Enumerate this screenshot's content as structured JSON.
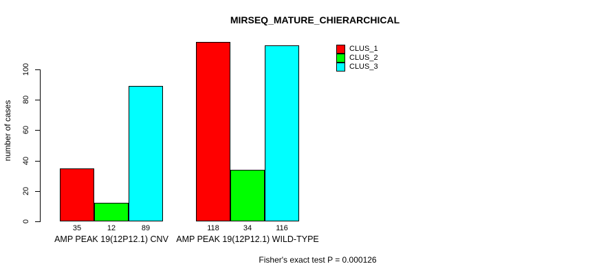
{
  "chart_data": {
    "type": "bar",
    "grouped": true,
    "title": "MIRSEQ_MATURE_CHIERARCHICAL",
    "ylabel": "number of cases",
    "xlabel": "",
    "categories": [
      "AMP PEAK 19(12P12.1) CNV",
      "AMP PEAK 19(12P12.1) WILD-TYPE"
    ],
    "series": [
      {
        "name": "CLUS_1",
        "color": "#ff0000",
        "values": [
          35,
          118
        ]
      },
      {
        "name": "CLUS_2",
        "color": "#00ff00",
        "values": [
          12,
          34
        ]
      },
      {
        "name": "CLUS_3",
        "color": "#00ffff",
        "values": [
          89,
          116
        ]
      }
    ],
    "bar_value_labels": [
      [
        35,
        12,
        89
      ],
      [
        118,
        34,
        116
      ]
    ],
    "yticks": [
      0,
      20,
      40,
      60,
      80,
      100
    ],
    "ylim": [
      0,
      120
    ],
    "grid": false,
    "legend_position": "top-right",
    "bar_border_color": "#000000",
    "background_color": "#ffffff",
    "annotation": "Fisher's exact test P = 0.000126"
  }
}
